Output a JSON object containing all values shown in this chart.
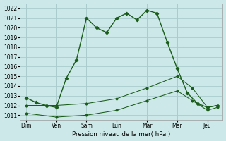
{
  "background_color": "#cce8e8",
  "grid_color": "#aacccc",
  "line_color": "#1a5c1a",
  "xlabel": "Pression niveau de la mer( hPa )",
  "ylim": [
    1010.5,
    1022.5
  ],
  "yticks": [
    1011,
    1012,
    1013,
    1014,
    1015,
    1016,
    1017,
    1018,
    1019,
    1020,
    1021,
    1022
  ],
  "days": [
    "Dim",
    "Ven",
    "Sam",
    "Lun",
    "Mar",
    "Mer",
    "Jeu"
  ],
  "day_positions": [
    0,
    1,
    2,
    3,
    4,
    5,
    6
  ],
  "series1_x": [
    0,
    0.33,
    0.67,
    1.0,
    1.33,
    1.67,
    2.0,
    2.33,
    2.67,
    3.0,
    3.33,
    3.67,
    4.0,
    4.33,
    4.67,
    5.0,
    5.33,
    5.67,
    6.0,
    6.33
  ],
  "series1_y": [
    1012.8,
    1012.3,
    1012.0,
    1011.8,
    1014.8,
    1016.7,
    1021.0,
    1020.0,
    1019.5,
    1021.0,
    1021.5,
    1020.8,
    1021.8,
    1021.5,
    1018.5,
    1015.8,
    1013.3,
    1012.2,
    1011.8,
    1012.0
  ],
  "series2_x": [
    0,
    1,
    2,
    3,
    4,
    5,
    5.5,
    6,
    6.33
  ],
  "series2_y": [
    1012.0,
    1012.0,
    1012.2,
    1012.7,
    1013.8,
    1015.0,
    1013.8,
    1011.8,
    1012.0
  ],
  "series3_x": [
    0,
    1,
    2,
    3,
    4,
    5,
    5.5,
    6,
    6.33
  ],
  "series3_y": [
    1011.2,
    1010.8,
    1011.0,
    1011.5,
    1012.5,
    1013.5,
    1012.5,
    1011.5,
    1011.8
  ]
}
